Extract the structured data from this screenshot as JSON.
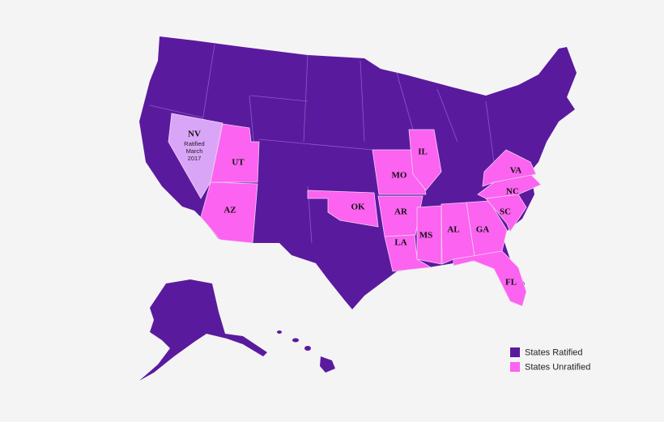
{
  "map": {
    "states": [
      {
        "label": "NV",
        "note": [
          "Ratified",
          "March",
          "2017"
        ]
      },
      {
        "label": "UT"
      },
      {
        "label": "AZ"
      },
      {
        "label": "OK"
      },
      {
        "label": "MO"
      },
      {
        "label": "IL"
      },
      {
        "label": "AR"
      },
      {
        "label": "LA"
      },
      {
        "label": "MS"
      },
      {
        "label": "AL"
      },
      {
        "label": "GA"
      },
      {
        "label": "SC"
      },
      {
        "label": "NC"
      },
      {
        "label": "VA"
      },
      {
        "label": "FL"
      }
    ],
    "legend": [
      {
        "name": "States Ratified",
        "color": "#5a1a9e"
      },
      {
        "name": "States Unratified",
        "color": "#fb63f0"
      }
    ]
  }
}
